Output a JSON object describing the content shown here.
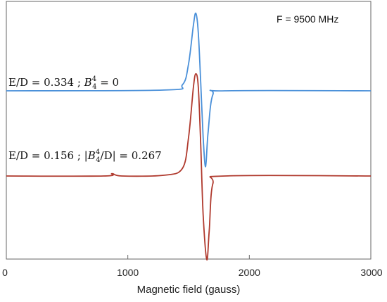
{
  "chart_data": {
    "type": "line",
    "title": "",
    "xlabel": "Magnetic field (gauss)",
    "ylabel": "",
    "xlim": [
      0,
      3000
    ],
    "x_ticks": [
      0,
      1000,
      2000,
      3000
    ],
    "x_tick_labels": [
      "0",
      "1000",
      "2000",
      "3000"
    ],
    "grid": false,
    "annotations": [
      "F = 9500 MHz"
    ],
    "series": [
      {
        "label": "E/D = 0.334 ; B44 = 0",
        "color": "#4a90d9",
        "baseline": 0,
        "center": 1600,
        "amplitude_pos": 1.0,
        "amplitude_neg": 0.98,
        "x": [
          0,
          1300,
          1450,
          1500,
          1540,
          1560,
          1580,
          1600,
          1620,
          1640,
          1660,
          1700,
          1800,
          3000
        ],
        "y": [
          0,
          0.01,
          0.08,
          0.35,
          0.85,
          1.0,
          0.75,
          0.1,
          -0.6,
          -0.98,
          -0.55,
          -0.05,
          0.0,
          0
        ]
      },
      {
        "label": "E/D = 0.156 ; |B44/D| = 0.267",
        "color": "#b03a2e",
        "baseline": -1.1,
        "x": [
          0,
          800,
          870,
          950,
          1300,
          1450,
          1500,
          1540,
          1560,
          1580,
          1600,
          1620,
          1650,
          1670,
          1700,
          1800,
          3000
        ],
        "y": [
          -1.1,
          -1.1,
          -1.07,
          -1.1,
          -1.09,
          -1.0,
          -0.6,
          0.05,
          0.22,
          0.05,
          -0.7,
          -1.6,
          -2.18,
          -1.8,
          -1.2,
          -1.1,
          -1.1
        ]
      }
    ]
  },
  "labels": {
    "freq": "F = 9500 MHz",
    "s1_prefix": "E/D = 0.334 ; ",
    "s1_b": "B",
    "s1_sup": "4",
    "s1_sub": "4",
    "s1_suffix": " = 0",
    "s2_prefix": "E/D = 0.156 ; |",
    "s2_b": "B",
    "s2_sup": "4",
    "s2_sub": "4",
    "s2_suffix": "/D| = 0.267"
  }
}
